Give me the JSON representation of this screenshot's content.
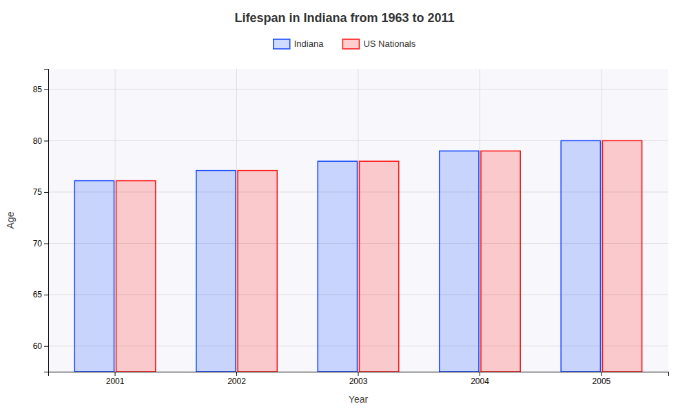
{
  "chart_data": {
    "type": "bar",
    "title": "Lifespan in Indiana from 1963 to 2011",
    "xlabel": "Year",
    "ylabel": "Age",
    "categories": [
      "2001",
      "2002",
      "2003",
      "2004",
      "2005"
    ],
    "series": [
      {
        "name": "Indiana",
        "color": "#1144ff",
        "values": [
          76.1,
          77.1,
          78.0,
          79.0,
          80.0
        ]
      },
      {
        "name": "US Nationals",
        "color": "#ff1111",
        "values": [
          76.1,
          77.1,
          78.0,
          79.0,
          80.0
        ]
      }
    ],
    "ylim": [
      57.5,
      87
    ],
    "yticks": [
      60,
      65,
      70,
      75,
      80,
      85
    ],
    "grid": true,
    "legend": "top"
  }
}
